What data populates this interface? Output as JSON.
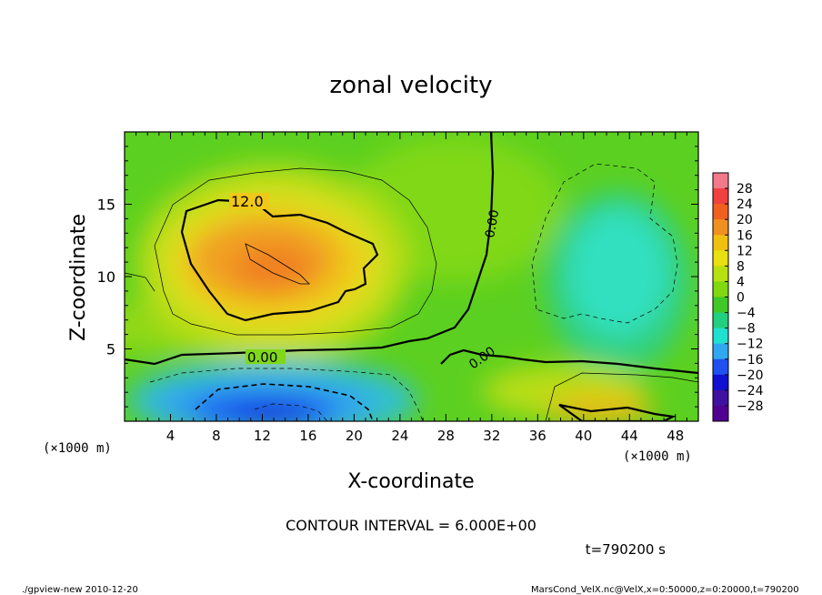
{
  "chart_data": {
    "type": "heatmap",
    "title": "zonal velocity",
    "xlabel": "X-coordinate",
    "ylabel": "Z-coordinate",
    "x_unit": "(×1000 m)",
    "x_unit_right": "(×1000 m)",
    "xlim": [
      0,
      50
    ],
    "ylim": [
      0,
      20
    ],
    "x_ticks": [
      4,
      8,
      12,
      16,
      20,
      24,
      28,
      32,
      36,
      40,
      44,
      48
    ],
    "y_ticks": [
      5,
      10,
      15
    ],
    "colorbar_ticks": [
      "28",
      "24",
      "20",
      "16",
      "12",
      "8",
      "4",
      "0",
      "−4",
      "−8",
      "−12",
      "−16",
      "−20",
      "−24",
      "−28"
    ],
    "colorbar_colors": [
      "#f07a8a",
      "#f04040",
      "#f06020",
      "#f09020",
      "#f0c010",
      "#e8e010",
      "#b8e010",
      "#80d810",
      "#40c828",
      "#20d080",
      "#20e0d0",
      "#30a8f0",
      "#2050f0",
      "#1010d0",
      "#4010a0",
      "#500090"
    ],
    "contour_labels": [
      "12.0",
      "0.00",
      "0.00",
      "0.00"
    ],
    "contour_interval": "CONTOUR INTERVAL = 6.000E+00",
    "time": "t=790200 s"
  },
  "footer": {
    "left": "./gpview-new  2010-12-20",
    "right": "MarsCond_VelX.nc@VelX,x=0:50000,z=0:20000,t=790200"
  }
}
